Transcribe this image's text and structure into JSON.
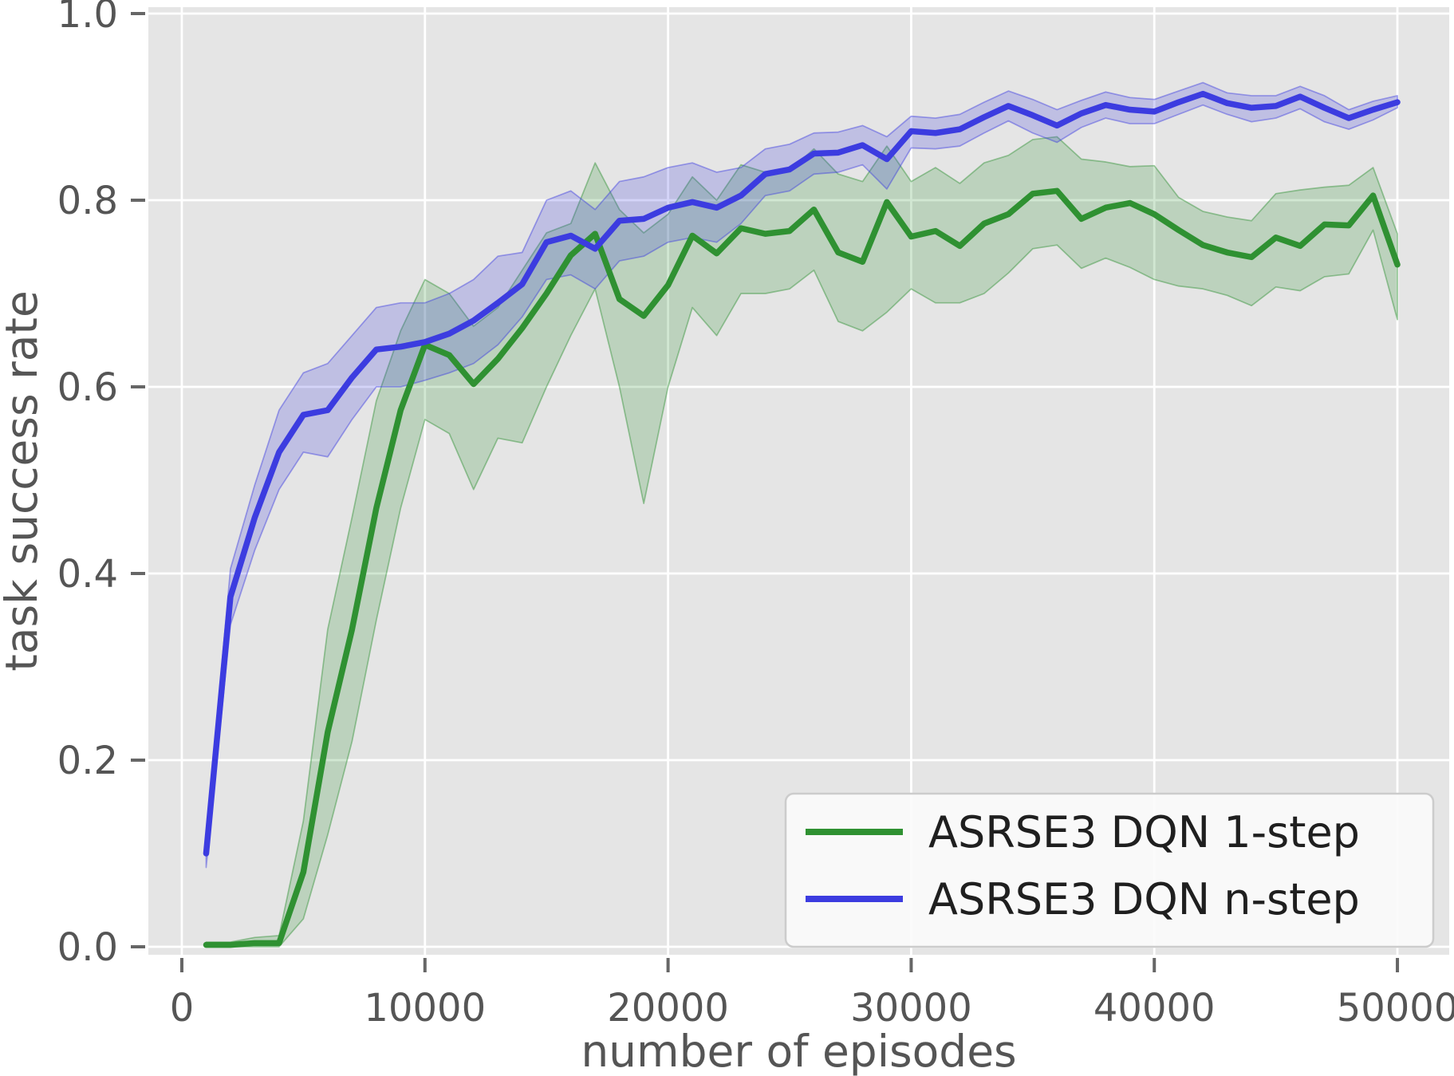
{
  "chart_data": {
    "type": "line",
    "title": "",
    "xlabel": "number of episodes",
    "ylabel": "task success rate",
    "grid": true,
    "legend_position": "lower right",
    "xlim": [
      -1377,
      52131
    ],
    "ylim": [
      -0.00855,
      1.00684
    ],
    "xticks": [
      0,
      10000,
      20000,
      30000,
      40000,
      50000
    ],
    "yticks": [
      0.0,
      0.2,
      0.4,
      0.6,
      0.8,
      1.0
    ],
    "xtick_labels": [
      "0",
      "10000",
      "20000",
      "30000",
      "40000",
      "50000"
    ],
    "ytick_labels": [
      "0.0",
      "0.2",
      "0.4",
      "0.6",
      "0.8",
      "1.0"
    ],
    "x": [
      1000,
      2000,
      3000,
      4000,
      5000,
      6000,
      7000,
      8000,
      9000,
      10000,
      11000,
      12000,
      13000,
      14000,
      15000,
      16000,
      17000,
      18000,
      19000,
      20000,
      21000,
      22000,
      23000,
      24000,
      25000,
      26000,
      27000,
      28000,
      29000,
      30000,
      31000,
      32000,
      33000,
      34000,
      35000,
      36000,
      37000,
      38000,
      39000,
      40000,
      41000,
      42000,
      43000,
      44000,
      45000,
      46000,
      47000,
      48000,
      49000,
      50000
    ],
    "series": [
      {
        "name": "ASRSE3 DQN 1-step",
        "color": "#2f9132",
        "values": [
          0.002,
          0.002,
          0.004,
          0.004,
          0.08,
          0.23,
          0.34,
          0.47,
          0.575,
          0.645,
          0.634,
          0.603,
          0.63,
          0.663,
          0.7,
          0.741,
          0.764,
          0.694,
          0.676,
          0.709,
          0.762,
          0.743,
          0.77,
          0.764,
          0.767,
          0.79,
          0.744,
          0.734,
          0.798,
          0.761,
          0.767,
          0.751,
          0.775,
          0.785,
          0.807,
          0.81,
          0.78,
          0.792,
          0.797,
          0.785,
          0.768,
          0.752,
          0.744,
          0.739,
          0.76,
          0.751,
          0.774,
          0.773,
          0.805,
          0.731
        ],
        "band_lower": [
          0,
          0,
          0,
          0,
          0.03,
          0.12,
          0.22,
          0.35,
          0.47,
          0.565,
          0.55,
          0.49,
          0.545,
          0.54,
          0.6,
          0.655,
          0.705,
          0.6,
          0.475,
          0.6,
          0.685,
          0.655,
          0.7,
          0.7,
          0.705,
          0.725,
          0.67,
          0.66,
          0.68,
          0.705,
          0.69,
          0.69,
          0.7,
          0.722,
          0.748,
          0.752,
          0.727,
          0.738,
          0.728,
          0.715,
          0.708,
          0.705,
          0.698,
          0.687,
          0.707,
          0.703,
          0.718,
          0.721,
          0.768,
          0.672
        ],
        "band_upper": [
          0.005,
          0.005,
          0.01,
          0.012,
          0.135,
          0.34,
          0.46,
          0.585,
          0.66,
          0.715,
          0.7,
          0.665,
          0.685,
          0.725,
          0.765,
          0.775,
          0.84,
          0.79,
          0.765,
          0.785,
          0.825,
          0.8,
          0.838,
          0.83,
          0.832,
          0.855,
          0.828,
          0.82,
          0.858,
          0.82,
          0.835,
          0.818,
          0.84,
          0.848,
          0.865,
          0.868,
          0.844,
          0.841,
          0.836,
          0.837,
          0.803,
          0.788,
          0.782,
          0.778,
          0.807,
          0.811,
          0.814,
          0.816,
          0.835,
          0.764
        ]
      },
      {
        "name": "ASRSE3 DQN n-step",
        "color": "#3c3ce0",
        "values": [
          0.1,
          0.375,
          0.46,
          0.53,
          0.57,
          0.575,
          0.61,
          0.64,
          0.643,
          0.648,
          0.657,
          0.671,
          0.69,
          0.71,
          0.755,
          0.762,
          0.748,
          0.778,
          0.78,
          0.792,
          0.798,
          0.792,
          0.805,
          0.828,
          0.833,
          0.85,
          0.851,
          0.859,
          0.844,
          0.874,
          0.872,
          0.876,
          0.889,
          0.901,
          0.891,
          0.88,
          0.893,
          0.902,
          0.897,
          0.895,
          0.905,
          0.914,
          0.904,
          0.899,
          0.901,
          0.911,
          0.899,
          0.888,
          0.897,
          0.905
        ],
        "band_lower": [
          0.085,
          0.345,
          0.425,
          0.49,
          0.53,
          0.525,
          0.565,
          0.6,
          0.6,
          0.607,
          0.615,
          0.625,
          0.645,
          0.675,
          0.715,
          0.72,
          0.705,
          0.735,
          0.74,
          0.755,
          0.76,
          0.755,
          0.775,
          0.805,
          0.81,
          0.828,
          0.83,
          0.838,
          0.812,
          0.856,
          0.855,
          0.858,
          0.872,
          0.885,
          0.872,
          0.862,
          0.878,
          0.888,
          0.882,
          0.882,
          0.892,
          0.902,
          0.892,
          0.884,
          0.888,
          0.898,
          0.884,
          0.876,
          0.886,
          0.899
        ],
        "band_upper": [
          0.115,
          0.405,
          0.495,
          0.575,
          0.615,
          0.625,
          0.655,
          0.685,
          0.69,
          0.69,
          0.7,
          0.715,
          0.74,
          0.744,
          0.8,
          0.81,
          0.79,
          0.82,
          0.825,
          0.835,
          0.84,
          0.83,
          0.835,
          0.855,
          0.86,
          0.872,
          0.873,
          0.88,
          0.868,
          0.89,
          0.888,
          0.892,
          0.905,
          0.917,
          0.908,
          0.897,
          0.907,
          0.916,
          0.91,
          0.908,
          0.917,
          0.926,
          0.915,
          0.912,
          0.912,
          0.922,
          0.912,
          0.897,
          0.906,
          0.912
        ]
      }
    ],
    "style": {
      "plot_bg": "#e5e5e5",
      "grid_color": "#ffffff",
      "tick_color": "#666666",
      "label_color": "#555555",
      "legend_bg": "#fbfbfb",
      "legend_border": "#cccccc",
      "legend_text": "#1f1f1f"
    }
  }
}
